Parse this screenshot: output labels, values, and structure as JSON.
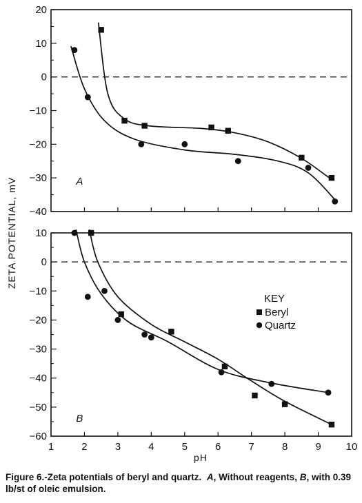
{
  "chart_data": [
    {
      "type": "scatter",
      "panel_label": "A",
      "xlim": [
        1,
        10
      ],
      "ylim": [
        -40,
        20
      ],
      "yticks": [
        "20",
        "10",
        "0",
        "-10",
        "-20",
        "-30",
        "-40"
      ],
      "ylabel": "ZETA POTENTIAL, mV",
      "zero_line": "dashed",
      "series": [
        {
          "name": "Beryl",
          "marker": "square",
          "x": [
            2.5,
            3.2,
            3.8,
            5.8,
            6.3,
            8.5,
            9.4
          ],
          "y": [
            14,
            -13,
            -14.5,
            -15,
            -16,
            -24,
            -30
          ]
        },
        {
          "name": "Quartz",
          "marker": "circle",
          "x": [
            1.7,
            2.1,
            3.7,
            5.0,
            6.6,
            8.7,
            9.5
          ],
          "y": [
            8,
            -6,
            -20,
            -20,
            -25,
            -27,
            -37
          ]
        }
      ]
    },
    {
      "type": "scatter",
      "panel_label": "B",
      "xlim": [
        1,
        10
      ],
      "ylim": [
        -60,
        10
      ],
      "yticks": [
        "10",
        "0",
        "-10",
        "-20",
        "-30",
        "-40",
        "-50",
        "-60"
      ],
      "xticks": [
        "1",
        "2",
        "3",
        "4",
        "5",
        "6",
        "7",
        "8",
        "9",
        "10"
      ],
      "xlabel": "pH",
      "zero_line": "dashed",
      "legend": {
        "title": "KEY",
        "entries": [
          "Beryl",
          "Quartz"
        ],
        "placement": "right"
      },
      "series": [
        {
          "name": "Beryl",
          "marker": "square",
          "x": [
            2.2,
            3.1,
            4.6,
            6.2,
            7.1,
            8.0,
            9.4
          ],
          "y": [
            10,
            -18,
            -24,
            -36,
            -46,
            -49,
            -56
          ]
        },
        {
          "name": "Quartz",
          "marker": "circle",
          "x": [
            1.7,
            2.1,
            2.6,
            3.0,
            3.8,
            4.0,
            6.1,
            7.6,
            9.3
          ],
          "y": [
            10,
            -12,
            -10,
            -20,
            -25,
            -26,
            -38,
            -42,
            -45
          ]
        }
      ]
    }
  ],
  "caption": {
    "lead": "Figure 6.-Zeta potentials of beryl and quartz.",
    "a_label": "A",
    "a_text": ", Without reagents,",
    "b_label": "B",
    "b_text": ", with 0.39 lb/st of oleic emulsion."
  }
}
